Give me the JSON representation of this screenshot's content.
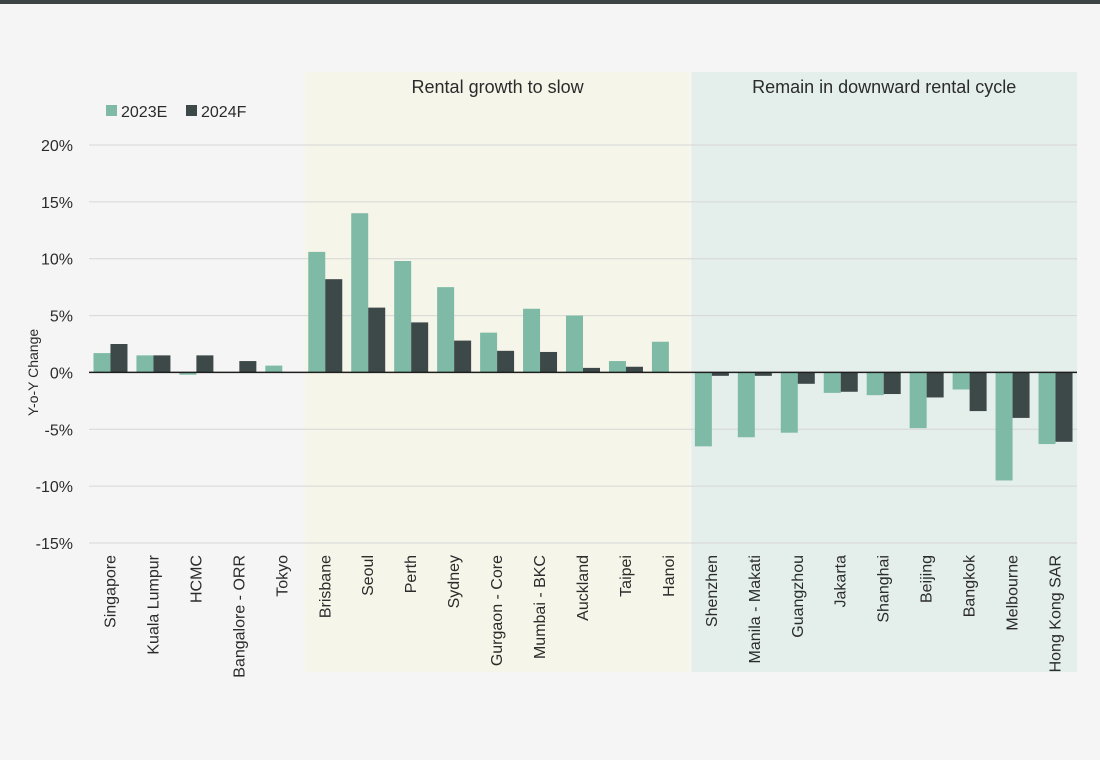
{
  "chart_data": {
    "type": "bar",
    "ylabel": "Y-o-Y Change",
    "ylim": [
      -15,
      20
    ],
    "yticks": [
      -15,
      -10,
      -5,
      0,
      5,
      10,
      15,
      20
    ],
    "ytick_labels": [
      "-15%",
      "-10%",
      "-5%",
      "0%",
      "5%",
      "10%",
      "15%",
      "20%"
    ],
    "legend_position": "top-left",
    "categories": [
      "Singapore",
      "Kuala Lumpur",
      "HCMC",
      "Bangalore - ORR",
      "Tokyo",
      "Brisbane",
      "Seoul",
      "Perth",
      "Sydney",
      "Gurgaon - Core",
      "Mumbai - BKC",
      "Auckland",
      "Taipei",
      "Hanoi",
      "Shenzhen",
      "Manila - Makati",
      "Guangzhou",
      "Jakarta",
      "Shanghai",
      "Beijing",
      "Bangkok",
      "Melbourne",
      "Hong Kong SAR"
    ],
    "series": [
      {
        "name": "2023E",
        "color": "#7fbaa6",
        "values": [
          1.7,
          1.5,
          -0.2,
          0,
          0.6,
          10.6,
          14.0,
          9.8,
          7.5,
          3.5,
          5.6,
          5.0,
          1.0,
          2.7,
          -6.5,
          -5.7,
          -5.3,
          -1.8,
          -2.0,
          -4.9,
          -1.5,
          -9.5,
          -6.3
        ]
      },
      {
        "name": "2024F",
        "color": "#3d4848",
        "values": [
          2.5,
          1.5,
          1.5,
          1.0,
          0,
          8.2,
          5.7,
          4.4,
          2.8,
          1.9,
          1.8,
          0.4,
          0.5,
          0,
          -0.3,
          -0.3,
          -1.0,
          -1.7,
          -1.9,
          -2.2,
          -3.4,
          -4.0,
          -6.1
        ]
      }
    ],
    "regions": [
      {
        "label": "Rental growth to slow",
        "start": "Brisbane",
        "end": "Hanoi",
        "color": "#f6f5e9"
      },
      {
        "label": "Remain in downward rental cycle",
        "start": "Shenzhen",
        "end": "Hong Kong SAR",
        "color": "#e4efec"
      }
    ]
  }
}
